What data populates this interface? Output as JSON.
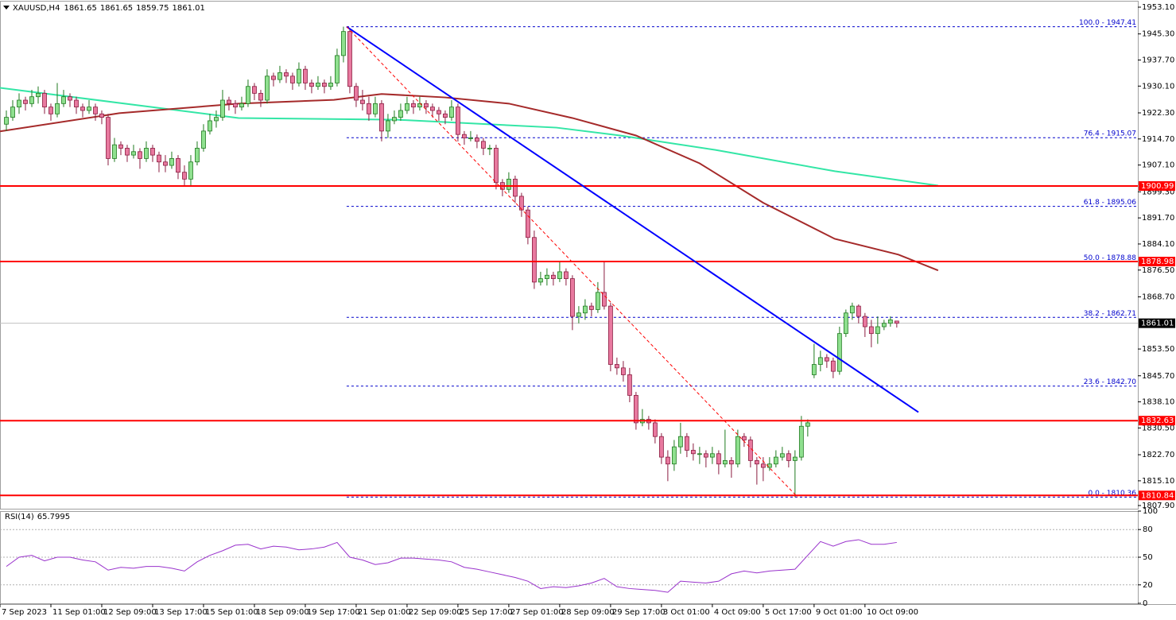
{
  "chart_data": {
    "type": "candlestick",
    "symbol": "XAUUSD,H4",
    "up_color": "#8fe08f",
    "up_edge": "#1f7a1f",
    "down_color": "#e8799f",
    "down_edge": "#8a1c40",
    "xlim": [
      -1,
      177.9
    ],
    "ylim": [
      1806.97,
      1954.72
    ],
    "candles": [
      [
        1919,
        1923,
        1917,
        1921
      ],
      [
        1921,
        1926,
        1920,
        1924
      ],
      [
        1924,
        1928,
        1922,
        1926
      ],
      [
        1926,
        1927,
        1923,
        1925
      ],
      [
        1925,
        1929,
        1924,
        1927
      ],
      [
        1927,
        1930,
        1925,
        1928
      ],
      [
        1928,
        1929,
        1922,
        1924
      ],
      [
        1924,
        1925,
        1920,
        1922
      ],
      [
        1922,
        1931,
        1921,
        1925
      ],
      [
        1925,
        1929,
        1924,
        1927
      ],
      [
        1927,
        1928,
        1924,
        1926
      ],
      [
        1926,
        1927,
        1922,
        1924
      ],
      [
        1924,
        1925,
        1921,
        1923
      ],
      [
        1923,
        1926,
        1922,
        1924
      ],
      [
        1924,
        1925,
        1920,
        1922
      ],
      [
        1922,
        1923,
        1919,
        1921
      ],
      [
        1921,
        1922,
        1907,
        1909
      ],
      [
        1909,
        1915,
        1908,
        1913
      ],
      [
        1913,
        1914,
        1910,
        1912
      ],
      [
        1912,
        1913,
        1908,
        1910
      ],
      [
        1910,
        1913,
        1909,
        1911
      ],
      [
        1911,
        1912,
        1906,
        1909
      ],
      [
        1909,
        1914,
        1908,
        1912
      ],
      [
        1912,
        1913,
        1908,
        1910
      ],
      [
        1910,
        1911,
        1905,
        1908
      ],
      [
        1908,
        1910,
        1905,
        1907
      ],
      [
        1907,
        1911,
        1906,
        1909
      ],
      [
        1909,
        1910,
        1903,
        1905
      ],
      [
        1905,
        1907,
        1901,
        1903
      ],
      [
        1903,
        1910,
        1901,
        1908
      ],
      [
        1908,
        1914,
        1907,
        1912
      ],
      [
        1912,
        1919,
        1911,
        1917
      ],
      [
        1917,
        1922,
        1916,
        1920
      ],
      [
        1920,
        1923,
        1918,
        1921
      ],
      [
        1921,
        1929,
        1920,
        1926
      ],
      [
        1926,
        1927,
        1923,
        1925
      ],
      [
        1925,
        1926,
        1922,
        1924
      ],
      [
        1924,
        1927,
        1923,
        1925
      ],
      [
        1925,
        1932,
        1924,
        1930
      ],
      [
        1930,
        1931,
        1926,
        1928
      ],
      [
        1928,
        1929,
        1924,
        1926
      ],
      [
        1926,
        1935,
        1925,
        1933
      ],
      [
        1933,
        1934,
        1930,
        1932
      ],
      [
        1932,
        1936,
        1931,
        1934
      ],
      [
        1934,
        1935,
        1931,
        1933
      ],
      [
        1933,
        1934,
        1929,
        1931
      ],
      [
        1931,
        1937,
        1930,
        1935
      ],
      [
        1935,
        1936,
        1929,
        1931
      ],
      [
        1931,
        1932,
        1928,
        1930
      ],
      [
        1930,
        1933,
        1929,
        1931
      ],
      [
        1931,
        1932,
        1928,
        1930
      ],
      [
        1930,
        1933,
        1929,
        1931
      ],
      [
        1931,
        1941,
        1930,
        1939
      ],
      [
        1939,
        1947.41,
        1937,
        1946
      ],
      [
        1946,
        1947,
        1928,
        1930
      ],
      [
        1930,
        1931,
        1924,
        1926
      ],
      [
        1926,
        1929,
        1923,
        1925
      ],
      [
        1925,
        1927,
        1920,
        1922
      ],
      [
        1922,
        1927,
        1921,
        1925
      ],
      [
        1925,
        1926,
        1914,
        1917
      ],
      [
        1917,
        1922,
        1915,
        1920
      ],
      [
        1920,
        1923,
        1919,
        1921
      ],
      [
        1921,
        1925,
        1920,
        1923
      ],
      [
        1923,
        1927,
        1922,
        1925
      ],
      [
        1925,
        1926,
        1922,
        1924
      ],
      [
        1924,
        1927,
        1923,
        1925
      ],
      [
        1925,
        1926,
        1922,
        1924
      ],
      [
        1924,
        1925,
        1921,
        1923
      ],
      [
        1923,
        1924,
        1920,
        1922
      ],
      [
        1922,
        1923,
        1919,
        1921
      ],
      [
        1921,
        1926,
        1920,
        1924
      ],
      [
        1924,
        1925,
        1914,
        1916
      ],
      [
        1916,
        1917,
        1913,
        1915
      ],
      [
        1915,
        1917,
        1914,
        1915
      ],
      [
        1915,
        1916,
        1912,
        1914
      ],
      [
        1914,
        1915,
        1910,
        1912
      ],
      [
        1912,
        1913,
        1910,
        1912
      ],
      [
        1912,
        1913,
        1900,
        1902
      ],
      [
        1902,
        1903,
        1898,
        1900
      ],
      [
        1900,
        1905,
        1899,
        1903
      ],
      [
        1903,
        1904,
        1896,
        1898
      ],
      [
        1898,
        1899,
        1892,
        1894
      ],
      [
        1894,
        1895,
        1884,
        1886
      ],
      [
        1886,
        1888,
        1871,
        1873
      ],
      [
        1873,
        1876,
        1872,
        1874
      ],
      [
        1874,
        1877,
        1872,
        1875
      ],
      [
        1875,
        1876,
        1872,
        1874
      ],
      [
        1874,
        1879,
        1873,
        1876
      ],
      [
        1876,
        1877,
        1872,
        1874
      ],
      [
        1874,
        1875,
        1859,
        1863
      ],
      [
        1863,
        1866,
        1861,
        1864
      ],
      [
        1864,
        1868,
        1862,
        1866
      ],
      [
        1866,
        1867,
        1863,
        1865
      ],
      [
        1865,
        1873,
        1864,
        1870
      ],
      [
        1870,
        1879,
        1865,
        1866
      ],
      [
        1866,
        1867,
        1847,
        1849
      ],
      [
        1849,
        1851,
        1846,
        1848
      ],
      [
        1848,
        1850,
        1844,
        1846
      ],
      [
        1846,
        1848,
        1838,
        1840
      ],
      [
        1840,
        1841,
        1830,
        1832
      ],
      [
        1832,
        1836,
        1831,
        1833
      ],
      [
        1833,
        1834,
        1830,
        1832
      ],
      [
        1832,
        1833,
        1826,
        1828
      ],
      [
        1828,
        1829,
        1820,
        1822
      ],
      [
        1822,
        1824,
        1815,
        1820
      ],
      [
        1820,
        1827,
        1818,
        1825
      ],
      [
        1825,
        1832,
        1823,
        1828
      ],
      [
        1828,
        1829,
        1822,
        1824
      ],
      [
        1824,
        1826,
        1821,
        1823
      ],
      [
        1823,
        1825,
        1820,
        1823
      ],
      [
        1823,
        1824,
        1819,
        1822
      ],
      [
        1822,
        1825,
        1820,
        1823
      ],
      [
        1823,
        1824,
        1817,
        1820
      ],
      [
        1820,
        1830,
        1819,
        1821
      ],
      [
        1821,
        1822,
        1816,
        1820
      ],
      [
        1820,
        1830,
        1819,
        1828
      ],
      [
        1828,
        1829,
        1825,
        1827
      ],
      [
        1827,
        1828,
        1819,
        1821
      ],
      [
        1821,
        1822,
        1814,
        1820
      ],
      [
        1820,
        1822,
        1815,
        1819
      ],
      [
        1819,
        1822,
        1818,
        1820
      ],
      [
        1820,
        1824,
        1819,
        1822
      ],
      [
        1822,
        1825,
        1821,
        1823
      ],
      [
        1823,
        1824,
        1819,
        1821
      ],
      [
        1821,
        1824,
        1810.36,
        1822
      ],
      [
        1822,
        1834,
        1821,
        1831
      ],
      [
        1831,
        1833,
        1828,
        1832
      ],
      [
        1846,
        1855,
        1845,
        1849
      ],
      [
        1849,
        1853,
        1847,
        1851
      ],
      [
        1851,
        1852,
        1848,
        1850
      ],
      [
        1850,
        1851,
        1845,
        1847
      ],
      [
        1847,
        1860,
        1846,
        1858
      ],
      [
        1858,
        1865,
        1857,
        1864
      ],
      [
        1864,
        1867,
        1862,
        1866
      ],
      [
        1866,
        1866.5,
        1861,
        1863
      ],
      [
        1863,
        1864,
        1857,
        1860
      ],
      [
        1860,
        1862,
        1854,
        1858
      ],
      [
        1858,
        1863,
        1855,
        1860
      ],
      [
        1860,
        1862,
        1859,
        1861
      ],
      [
        1861,
        1863,
        1860,
        1862
      ],
      [
        1861.65,
        1861.65,
        1859.75,
        1861.01
      ]
    ],
    "yticks": [
      {
        "value": 1953.1,
        "label": "1953.10"
      },
      {
        "value": 1945.3,
        "label": "1945.30"
      },
      {
        "value": 1937.7,
        "label": "1937.70"
      },
      {
        "value": 1930.1,
        "label": "1930.10"
      },
      {
        "value": 1922.3,
        "label": "1922.30"
      },
      {
        "value": 1914.7,
        "label": "1914.70"
      },
      {
        "value": 1907.1,
        "label": "1907.10"
      },
      {
        "value": 1899.3,
        "label": "1899.30"
      },
      {
        "value": 1891.7,
        "label": "1891.70"
      },
      {
        "value": 1884.1,
        "label": "1884.10"
      },
      {
        "value": 1876.5,
        "label": "1876.50"
      },
      {
        "value": 1868.7,
        "label": "1868.70"
      },
      {
        "value": 1853.5,
        "label": "1853.50"
      },
      {
        "value": 1845.7,
        "label": "1845.70"
      },
      {
        "value": 1838.1,
        "label": "1838.10"
      },
      {
        "value": 1830.5,
        "label": "1830.50"
      },
      {
        "value": 1822.7,
        "label": "1822.70"
      },
      {
        "value": 1815.1,
        "label": "1815.10"
      },
      {
        "value": 1807.9,
        "label": "1807.90"
      }
    ],
    "xticks": [
      {
        "value": -1,
        "label": "7 Sep 2023"
      },
      {
        "value": 7,
        "label": "11 Sep 01:00"
      },
      {
        "value": 15,
        "label": "12 Sep 09:00"
      },
      {
        "value": 23,
        "label": "13 Sep 17:00"
      },
      {
        "value": 31,
        "label": "15 Sep 01:00"
      },
      {
        "value": 39,
        "label": "18 Sep 09:00"
      },
      {
        "value": 47,
        "label": "19 Sep 17:00"
      },
      {
        "value": 55,
        "label": "21 Sep 01:00"
      },
      {
        "value": 63,
        "label": "22 Sep 09:00"
      },
      {
        "value": 71,
        "label": "25 Sep 17:00"
      },
      {
        "value": 79,
        "label": "27 Sep 01:00"
      },
      {
        "value": 87,
        "label": "28 Sep 09:00"
      },
      {
        "value": 95,
        "label": "29 Sep 17:00"
      },
      {
        "value": 103,
        "label": "3 Oct 01:00"
      },
      {
        "value": 111,
        "label": "4 Oct 09:00"
      },
      {
        "value": 119,
        "label": "5 Oct 17:00"
      },
      {
        "value": 127,
        "label": "9 Oct 01:00"
      },
      {
        "value": 135,
        "label": "10 Oct 09:00"
      }
    ],
    "series": [
      {
        "color": "#33e6a6",
        "x": [
          -1,
          36.5,
          61.5,
          86.5,
          96.5,
          111.5,
          130.25,
          146.5
        ],
        "values": [
          1929.6,
          1920.8,
          1920.3,
          1918,
          1915.7,
          1911.5,
          1905.3,
          1901.1
        ]
      },
      {
        "color": "#a52a2a",
        "x": [
          -1,
          17.75,
          36.5,
          51.5,
          59,
          69,
          79,
          89,
          99,
          109,
          119,
          130.25,
          140.25,
          146.5
        ],
        "values": [
          1916.9,
          1922.2,
          1925,
          1926.1,
          1927.8,
          1926.8,
          1925,
          1920.8,
          1915.7,
          1907.6,
          1896.1,
          1885.6,
          1881,
          1876.4
        ]
      }
    ],
    "trendlines": [
      {
        "color": "#0000ff",
        "dashed": false,
        "x": [
          53.5,
          143.4
        ],
        "y": [
          1947.41,
          1835.1
        ]
      },
      {
        "color": "#ff0000",
        "dashed": true,
        "x": [
          53.5,
          124.4
        ],
        "y": [
          1947.41,
          1810.36
        ]
      }
    ],
    "fib_start": 53.5,
    "fib_color": "#0000cc",
    "fib_levels": [
      {
        "label": "100.0 - 1947.41",
        "value": 1947.41
      },
      {
        "label": "76.4 - 1915.07",
        "value": 1915.07
      },
      {
        "label": "61.8 - 1895.06",
        "value": 1895.06
      },
      {
        "label": "50.0 - 1878.88",
        "value": 1878.88
      },
      {
        "label": "38.2 - 1862.71",
        "value": 1862.71
      },
      {
        "label": "23.6 - 1842.70",
        "value": 1842.7
      },
      {
        "label": "0.0 - 1810.36",
        "value": 1810.36
      }
    ],
    "level_color": "#ff0000",
    "levels": [
      1900.99,
      1878.98,
      1832.63,
      1810.84
    ],
    "rsi": {
      "label": "RSI(14)",
      "value": 65.7995,
      "color": "#9932cc",
      "ylim": [
        0,
        100
      ],
      "yticks": [
        100,
        80,
        50,
        20,
        0
      ],
      "x": [
        0,
        2,
        4,
        6,
        8,
        10,
        12,
        14,
        16,
        18,
        20,
        22,
        24,
        26,
        28,
        30,
        32,
        34,
        36,
        38,
        40,
        42,
        44,
        46,
        48,
        50,
        52,
        54,
        56,
        58,
        60,
        62,
        64,
        66,
        68,
        70,
        72,
        74,
        76,
        78,
        80,
        82,
        84,
        86,
        88,
        90,
        92,
        94,
        96,
        98,
        100,
        102,
        104,
        106,
        108,
        110,
        112,
        114,
        116,
        118,
        120,
        122,
        124,
        126,
        128,
        130,
        132,
        134,
        136,
        138,
        140
      ],
      "values": [
        40,
        50,
        52,
        46,
        50,
        50,
        47,
        45,
        36,
        39,
        38,
        40,
        40,
        38,
        35,
        45,
        52,
        57,
        63,
        64,
        59,
        62,
        61,
        58,
        59,
        61,
        66,
        50,
        47,
        42,
        44,
        49,
        49,
        48,
        47,
        45,
        39,
        37,
        34,
        31,
        28,
        24,
        16,
        18,
        17,
        19,
        22,
        27,
        18,
        16,
        15,
        14,
        12,
        24,
        23,
        22,
        24,
        32,
        35,
        33,
        35,
        36,
        37,
        52,
        67,
        62,
        67,
        69,
        64,
        64,
        66
      ]
    }
  }
}
